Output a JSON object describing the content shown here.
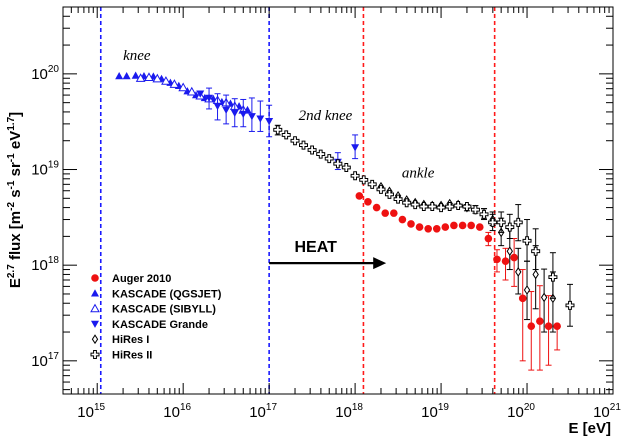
{
  "chart_data": {
    "type": "scatter",
    "xlabel": "E [eV]",
    "ylabel": {
      "base": "E",
      "sup1": "2.7",
      "mid": " flux [m",
      "sup2": "-2",
      "s": " s",
      "sup3": "-1",
      "sr": " sr",
      "sup4": "-1",
      "ev": " eV",
      "sup5": "1.7",
      "end": "]"
    },
    "x_scale": "log",
    "y_scale": "log",
    "xlim": [
      400000000000000.0,
      1e+21
    ],
    "ylim": [
      4.5e+16,
      5e+20
    ],
    "x_ticks": [
      {
        "base": "10",
        "exp": "15",
        "value": 1000000000000000.0
      },
      {
        "base": "10",
        "exp": "16",
        "value": 1e+16
      },
      {
        "base": "10",
        "exp": "17",
        "value": 1e+17
      },
      {
        "base": "10",
        "exp": "18",
        "value": 1e+18
      },
      {
        "base": "10",
        "exp": "19",
        "value": 1e+19
      },
      {
        "base": "10",
        "exp": "20",
        "value": 1e+20
      },
      {
        "base": "10",
        "exp": "21",
        "value": 1e+21
      }
    ],
    "y_ticks": [
      {
        "base": "10",
        "exp": "17",
        "value": 1e+17
      },
      {
        "base": "10",
        "exp": "18",
        "value": 1e+18
      },
      {
        "base": "10",
        "exp": "19",
        "value": 1e+19
      },
      {
        "base": "10",
        "exp": "20",
        "value": 1e+20
      }
    ],
    "vertical_lines": [
      {
        "x": 1100000000000000.0,
        "color": "#1a1aff"
      },
      {
        "x": 1e+17,
        "color": "#1a1aff"
      },
      {
        "x": 1.25e+18,
        "color": "#ff1a1a"
      },
      {
        "x": 4.2e+19,
        "color": "#ff1a1a"
      }
    ],
    "annotations": [
      {
        "text": "knee",
        "x": 2000000000000000.0,
        "y": 1.4e+20
      },
      {
        "text": "2nd knee",
        "x": 2.2e+17,
        "y": 3.3e+19
      },
      {
        "text": "ankle",
        "x": 3.5e+18,
        "y": 8.3e+18
      }
    ],
    "heat_arrow": {
      "label": "HEAT",
      "x_start": 1e+17,
      "x_end": 2.3e+18,
      "y": 1.05e+18
    },
    "series": [
      {
        "name": "Auger 2010",
        "marker": "circle-filled",
        "color": "#ee1111",
        "points": [
          [
            1.12e+18,
            5.3e+18
          ],
          [
            1.41e+18,
            4.6e+18
          ],
          [
            1.78e+18,
            4e+18
          ],
          [
            2.24e+18,
            3.5e+18
          ],
          [
            2.82e+18,
            3.5e+18
          ],
          [
            3.55e+18,
            3e+18
          ],
          [
            4.47e+18,
            2.7e+18
          ],
          [
            5.62e+18,
            2.5e+18
          ],
          [
            7.08e+18,
            2.4e+18
          ],
          [
            8.91e+18,
            2.4e+18
          ],
          [
            1.12e+19,
            2.5e+18
          ],
          [
            1.41e+19,
            2.6e+18
          ],
          [
            1.78e+19,
            2.6e+18
          ],
          [
            2.24e+19,
            2.6e+18
          ],
          [
            2.82e+19,
            2.5e+18
          ],
          [
            3.55e+19,
            1.9e+18
          ],
          [
            4.47e+19,
            1.15e+18
          ],
          [
            5.62e+19,
            1.1e+18
          ],
          [
            7.08e+19,
            1.2e+18
          ],
          [
            8.91e+19,
            4.5e+17
          ],
          [
            1.12e+20,
            2.3e+17
          ],
          [
            1.41e+20,
            2.6e+17
          ],
          [
            1.78e+20,
            2.3e+17
          ],
          [
            2.24e+20,
            2.3e+17
          ]
        ],
        "err": [
          [
            0,
            0
          ],
          [
            0,
            0
          ],
          [
            0,
            0
          ],
          [
            0,
            0
          ],
          [
            0,
            0
          ],
          [
            0,
            0
          ],
          [
            0,
            0
          ],
          [
            0,
            0
          ],
          [
            0,
            0
          ],
          [
            0,
            0
          ],
          [
            0,
            0
          ],
          [
            0,
            0
          ],
          [
            0,
            0
          ],
          [
            0,
            0
          ],
          [
            0,
            0
          ],
          [
            3e+17,
            3e+17
          ],
          [
            3e+17,
            3e+17
          ],
          [
            4e+17,
            4e+17
          ],
          [
            6e+17,
            7e+17
          ],
          [
            3.5e+17,
            4.5e+17
          ],
          [
            1.5e+17,
            3e+17
          ],
          [
            1.8e+17,
            3.5e+17
          ],
          [
            1.4e+17,
            2.5e+17
          ],
          [
            1e+17,
            0
          ]
        ]
      },
      {
        "name": "KASCADE (QGSJET)",
        "marker": "triangle-up-filled",
        "color": "#1a1aee",
        "points": [
          [
            1800000000000000.0,
            9.5e+19
          ],
          [
            2200000000000000.0,
            9.5e+19
          ],
          [
            2800000000000000.0,
            9.6e+19
          ],
          [
            3500000000000000.0,
            9.5e+19
          ],
          [
            4500000000000000.0,
            9.4e+19
          ],
          [
            5600000000000000.0,
            8.9e+19
          ],
          [
            7100000000000000.0,
            8.1e+19
          ],
          [
            8900000000000000.0,
            7.5e+19
          ],
          [
            1.12e+16,
            6.6e+19
          ],
          [
            1.41e+16,
            6e+19
          ],
          [
            1.78e+16,
            5.6e+19
          ],
          [
            2.24e+16,
            5.5e+19
          ],
          [
            2.82e+16,
            5.1e+19
          ],
          [
            3.55e+16,
            4.9e+19
          ],
          [
            4.47e+16,
            4.6e+19
          ],
          [
            5.6e+16,
            4.2e+19
          ]
        ],
        "err": []
      },
      {
        "name": "KASCADE (SIBYLL)",
        "marker": "triangle-up-open",
        "color": "#1a1aee",
        "points": [
          [
            3200000000000000.0,
            9e+19
          ],
          [
            4000000000000000.0,
            9.2e+19
          ],
          [
            5000000000000000.0,
            8.9e+19
          ],
          [
            6300000000000000.0,
            8.4e+19
          ],
          [
            7900000000000000.0,
            7.8e+19
          ],
          [
            1e+16,
            7.2e+19
          ],
          [
            1.26e+16,
            6.5e+19
          ],
          [
            1.58e+16,
            5.9e+19
          ],
          [
            2e+16,
            5.5e+19
          ],
          [
            2.51e+16,
            5.3e+19
          ],
          [
            3.16e+16,
            5e+19
          ],
          [
            3.98e+16,
            4.6e+19
          ],
          [
            5e+16,
            4.2e+19
          ]
        ],
        "err": []
      },
      {
        "name": "KASCADE Grande",
        "marker": "triangle-down-filled",
        "color": "#1a1aee",
        "points": [
          [
            1.58e+16,
            6.2e+19
          ],
          [
            2e+16,
            5.6e+19
          ],
          [
            2.51e+16,
            4.6e+19
          ],
          [
            3.16e+16,
            4.2e+19
          ],
          [
            3.98e+16,
            3.9e+19
          ],
          [
            5e+16,
            3.8e+19
          ],
          [
            6.3e+16,
            3.6e+19
          ],
          [
            7.9e+16,
            3.4e+19
          ],
          [
            1e+17,
            3.2e+19
          ],
          [
            6.3e+17,
            1.2e+19
          ],
          [
            1e+18,
            1.7e+19
          ]
        ],
        "err": [
          [
            0,
            0
          ],
          [
            1.3e+19,
            1.5e+19
          ],
          [
            1.3e+19,
            1.6e+19
          ],
          [
            1.2e+19,
            1.8e+19
          ],
          [
            1.1e+19,
            1.6e+19
          ],
          [
            1e+19,
            1.6e+19
          ],
          [
            1.1e+19,
            2e+19
          ],
          [
            9e+18,
            1.8e+19
          ],
          [
            1e+19,
            1.5e+19
          ],
          [
            2e+18,
            3e+18
          ],
          [
            4e+18,
            6e+18
          ]
        ]
      },
      {
        "name": "HiRes I",
        "marker": "diamond-open",
        "color": "#000000",
        "points": [
          [
            2e+18,
            6.6e+18
          ],
          [
            2.51e+18,
            5.9e+18
          ],
          [
            3.16e+18,
            5.3e+18
          ],
          [
            3.98e+18,
            4.8e+18
          ],
          [
            5e+18,
            4.5e+18
          ],
          [
            6.3e+18,
            4.3e+18
          ],
          [
            7.9e+18,
            4.2e+18
          ],
          [
            1e+19,
            4.2e+18
          ],
          [
            1.26e+19,
            4.4e+18
          ],
          [
            1.58e+19,
            4.3e+18
          ],
          [
            2e+19,
            4e+18
          ],
          [
            2.51e+19,
            3.8e+18
          ],
          [
            3.16e+19,
            3.4e+18
          ],
          [
            3.98e+19,
            3e+18
          ],
          [
            5e+19,
            2.2e+18
          ],
          [
            6.3e+19,
            1.4e+18
          ],
          [
            7.9e+19,
            8.5e+17
          ],
          [
            1e+20,
            5.5e+17
          ],
          [
            1.26e+20,
            8e+17
          ],
          [
            1.58e+20,
            4.6e+17
          ],
          [
            2e+20,
            4.5e+17
          ]
        ],
        "err": [
          [
            0,
            0
          ],
          [
            0,
            0
          ],
          [
            0,
            0
          ],
          [
            0,
            0
          ],
          [
            0,
            0
          ],
          [
            0,
            0
          ],
          [
            0,
            0
          ],
          [
            0,
            0
          ],
          [
            0,
            0
          ],
          [
            0,
            0
          ],
          [
            3e+17,
            3e+17
          ],
          [
            3e+17,
            4e+17
          ],
          [
            3e+17,
            5e+17
          ],
          [
            4e+17,
            6e+17
          ],
          [
            6e+17,
            9e+17
          ],
          [
            5e+17,
            1e+18
          ],
          [
            3.5e+17,
            6.5e+17
          ],
          [
            2.8e+17,
            5.5e+17
          ],
          [
            4.5e+17,
            8e+17
          ],
          [
            2.6e+17,
            4.5e+17
          ],
          [
            2.5e+17,
            4e+17
          ]
        ]
      },
      {
        "name": "HiRes II",
        "marker": "cross-open",
        "color": "#000000",
        "points": [
          [
            1.26e+17,
            2.6e+19
          ],
          [
            1.58e+17,
            2.3e+19
          ],
          [
            2e+17,
            2e+19
          ],
          [
            2.51e+17,
            1.8e+19
          ],
          [
            3.16e+17,
            1.6e+19
          ],
          [
            3.98e+17,
            1.45e+19
          ],
          [
            5e+17,
            1.3e+19
          ],
          [
            6.3e+17,
            1.15e+19
          ],
          [
            7.9e+17,
            1.05e+19
          ],
          [
            1e+18,
            8.6e+18
          ],
          [
            1.26e+18,
            7.8e+18
          ],
          [
            1.58e+18,
            7e+18
          ],
          [
            2e+18,
            6.2e+18
          ],
          [
            2.51e+18,
            5.5e+18
          ],
          [
            3.16e+18,
            4.9e+18
          ],
          [
            3.98e+18,
            4.5e+18
          ],
          [
            5e+18,
            4.3e+18
          ],
          [
            6.3e+18,
            4.1e+18
          ],
          [
            7.9e+18,
            4.1e+18
          ],
          [
            1e+19,
            4e+18
          ],
          [
            1.26e+19,
            4.1e+18
          ],
          [
            1.58e+19,
            4.2e+18
          ],
          [
            2e+19,
            4.1e+18
          ],
          [
            2.51e+19,
            3.8e+18
          ],
          [
            3.16e+19,
            3.4e+18
          ],
          [
            3.98e+19,
            2.8e+18
          ],
          [
            5e+19,
            2.8e+18
          ],
          [
            6.3e+19,
            2.5e+18
          ],
          [
            7.9e+19,
            2.8e+18
          ],
          [
            1e+20,
            1.8e+18
          ],
          [
            1.26e+20,
            1.4e+18
          ],
          [
            2e+20,
            7.5e+17
          ],
          [
            3.16e+20,
            3.8e+17
          ]
        ],
        "err": [
          [
            3e+18,
            3e+18
          ],
          [
            0,
            0
          ],
          [
            0,
            0
          ],
          [
            0,
            0
          ],
          [
            0,
            0
          ],
          [
            0,
            0
          ],
          [
            0,
            0
          ],
          [
            0,
            0
          ],
          [
            0,
            0
          ],
          [
            0,
            0
          ],
          [
            0,
            0
          ],
          [
            0,
            0
          ],
          [
            0,
            0
          ],
          [
            0,
            0
          ],
          [
            0,
            0
          ],
          [
            0,
            0
          ],
          [
            0,
            0
          ],
          [
            0,
            0
          ],
          [
            0,
            0
          ],
          [
            0,
            0
          ],
          [
            0,
            0
          ],
          [
            0,
            0
          ],
          [
            0,
            0
          ],
          [
            0,
            0
          ],
          [
            4e+17,
            5e+17
          ],
          [
            5e+17,
            6e+17
          ],
          [
            6e+17,
            8e+17
          ],
          [
            6e+17,
            9e+17
          ],
          [
            1e+18,
            1.5e+18
          ],
          [
            7e+17,
            1.2e+18
          ],
          [
            5e+17,
            1e+18
          ],
          [
            3e+17,
            6e+17
          ],
          [
            1.5e+17,
            2.5e+17
          ]
        ]
      }
    ],
    "legend_placement": "bottom-left"
  }
}
